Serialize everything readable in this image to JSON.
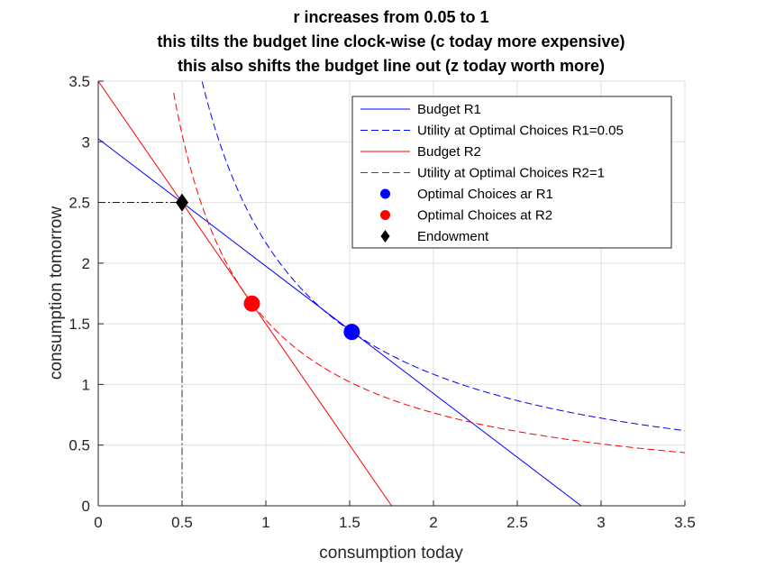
{
  "chart_data": {
    "type": "line",
    "title": [
      "r increases from 0.05 to 1",
      "this tilts the budget line clock-wise (c today more expensive)",
      "this also shifts the budget line out (z today worth more)"
    ],
    "xlabel": "consumption today",
    "ylabel": "consumption tomorrow",
    "xlim": [
      0,
      3.5
    ],
    "ylim": [
      0,
      3.5
    ],
    "xticks": [
      0,
      0.5,
      1,
      1.5,
      2,
      2.5,
      3,
      3.5
    ],
    "yticks": [
      0,
      0.5,
      1,
      1.5,
      2,
      2.5,
      3,
      3.5
    ],
    "xtick_labels": [
      "0",
      "0.5",
      "1",
      "1.5",
      "2",
      "2.5",
      "3",
      "3.5"
    ],
    "ytick_labels": [
      "0",
      "0.5",
      "1",
      "1.5",
      "2",
      "2.5",
      "3",
      "3.5"
    ],
    "grid": true,
    "legend_position": "top-right",
    "series": [
      {
        "name": "Budget R1",
        "kind": "line",
        "color": "#0000ff",
        "style": "solid",
        "x": [
          0,
          2.881
        ],
        "y": [
          3.025,
          0
        ]
      },
      {
        "name": "Utility at Optimal Choices R1=0.05",
        "kind": "curve",
        "color": "#0000ff",
        "style": "dashed",
        "x_range": [
          0.62,
          3.5
        ],
        "k": 2.1678
      },
      {
        "name": "Budget R2",
        "kind": "line",
        "color": "#ff0000",
        "style": "solid",
        "x": [
          0,
          1.75
        ],
        "y": [
          3.5,
          0
        ]
      },
      {
        "name": "Utility at Optimal Choices R2=1",
        "kind": "curve",
        "color": "#ff0000",
        "style": "dashed",
        "x_range": [
          0.45,
          3.5
        ],
        "k": 1.5313
      },
      {
        "name": "Optimal Choices ar R1",
        "kind": "marker",
        "marker": "circle",
        "color": "#0000ff",
        "x": [
          1.5125
        ],
        "y": [
          1.4331
        ]
      },
      {
        "name": "Optimal Choices at R2",
        "kind": "marker",
        "marker": "circle",
        "color": "#ff0000",
        "x": [
          0.9167
        ],
        "y": [
          1.6667
        ]
      },
      {
        "name": "Endowment",
        "kind": "marker",
        "marker": "diamond",
        "color": "#000000",
        "x": [
          0.5
        ],
        "y": [
          2.5
        ]
      }
    ],
    "guides": {
      "x": 0.5,
      "y": 2.5,
      "color": "#000000",
      "style": "dashdot"
    }
  }
}
